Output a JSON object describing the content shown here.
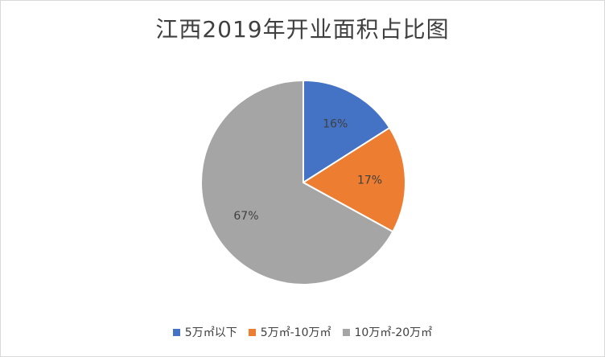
{
  "chart_data": {
    "type": "pie",
    "title": "江西2019年开业面积占比图",
    "legend_position": "bottom",
    "slices": [
      {
        "name": "5万㎡以下",
        "value": 16,
        "label": "16%",
        "color": "#4472c4"
      },
      {
        "name": "5万㎡-10万㎡",
        "value": 17,
        "label": "17%",
        "color": "#ed7d31"
      },
      {
        "name": "10万㎡-20万㎡",
        "value": 67,
        "label": "67%",
        "color": "#a5a5a5"
      }
    ]
  },
  "legend": {
    "items": [
      "5万㎡以下",
      "5万㎡-10万㎡",
      "10万㎡-20万㎡"
    ]
  }
}
